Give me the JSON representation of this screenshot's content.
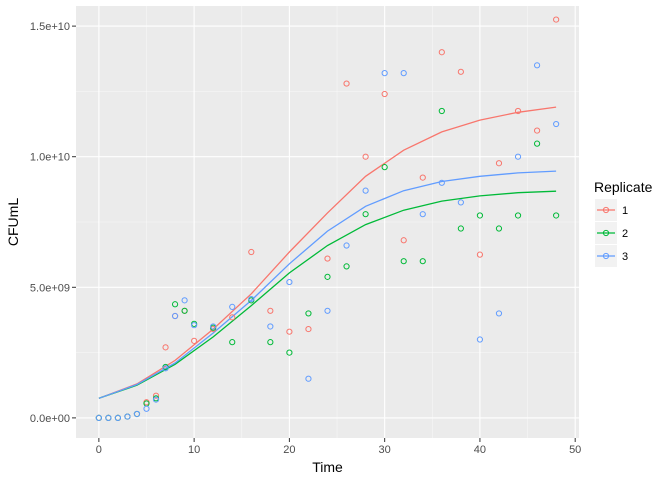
{
  "chart_data": {
    "type": "scatter",
    "xlabel": "Time",
    "ylabel": "CFUmL",
    "xlim": [
      -2.4,
      50.4
    ],
    "ylim": [
      -770000000.0,
      15770000000.0
    ],
    "x_ticks": [
      0,
      10,
      20,
      30,
      40,
      50
    ],
    "x_tick_labels": [
      "0",
      "10",
      "20",
      "30",
      "40",
      "50"
    ],
    "y_ticks": [
      0,
      5000000000,
      10000000000,
      15000000000
    ],
    "y_tick_labels": [
      "0.0e+00",
      "5.0e+09",
      "1.0e+10",
      "1.5e+10"
    ],
    "grid": true,
    "legend": {
      "title": "Replicate",
      "position": "right",
      "entries": [
        "1",
        "2",
        "3"
      ]
    },
    "series": [
      {
        "name": "1",
        "color": "#F8766D",
        "points": [
          [
            0,
            0
          ],
          [
            1,
            0
          ],
          [
            2,
            0
          ],
          [
            3,
            50000000.0
          ],
          [
            4,
            150000000.0
          ],
          [
            5,
            600000000.0
          ],
          [
            6,
            850000000.0
          ],
          [
            7,
            2700000000.0
          ],
          [
            8,
            3900000000.0
          ],
          [
            9,
            4100000000.0
          ],
          [
            10,
            2950000000.0
          ],
          [
            12,
            3400000000.0
          ],
          [
            14,
            3850000000.0
          ],
          [
            16,
            6350000000.0
          ],
          [
            18,
            4100000000.0
          ],
          [
            20,
            3300000000.0
          ],
          [
            22,
            3400000000.0
          ],
          [
            24,
            6100000000.0
          ],
          [
            26,
            12800000000.0
          ],
          [
            28,
            10000000000.0
          ],
          [
            30,
            12400000000.0
          ],
          [
            32,
            6800000000.0
          ],
          [
            34,
            9200000000.0
          ],
          [
            36,
            14000000000.0
          ],
          [
            38,
            13250000000.0
          ],
          [
            40,
            6250000000.0
          ],
          [
            42,
            9750000000.0
          ],
          [
            44,
            11750000000.0
          ],
          [
            46,
            11000000000.0
          ],
          [
            48,
            15250000000.0
          ]
        ],
        "fit": [
          [
            0,
            750000000.0
          ],
          [
            4,
            1300000000.0
          ],
          [
            8,
            2200000000.0
          ],
          [
            12,
            3400000000.0
          ],
          [
            16,
            4750000000.0
          ],
          [
            20,
            6350000000.0
          ],
          [
            24,
            7850000000.0
          ],
          [
            28,
            9250000000.0
          ],
          [
            32,
            10250000000.0
          ],
          [
            36,
            10950000000.0
          ],
          [
            40,
            11400000000.0
          ],
          [
            44,
            11700000000.0
          ],
          [
            48,
            11900000000.0
          ]
        ]
      },
      {
        "name": "2",
        "color": "#00BA38",
        "points": [
          [
            0,
            0
          ],
          [
            1,
            0
          ],
          [
            2,
            0
          ],
          [
            3,
            50000000.0
          ],
          [
            4,
            150000000.0
          ],
          [
            5,
            550000000.0
          ],
          [
            6,
            750000000.0
          ],
          [
            7,
            1950000000.0
          ],
          [
            8,
            4350000000.0
          ],
          [
            9,
            4100000000.0
          ],
          [
            10,
            3600000000.0
          ],
          [
            12,
            3450000000.0
          ],
          [
            14,
            2900000000.0
          ],
          [
            16,
            4500000000.0
          ],
          [
            18,
            2900000000.0
          ],
          [
            20,
            2500000000.0
          ],
          [
            22,
            4000000000.0
          ],
          [
            24,
            5400000000.0
          ],
          [
            26,
            5800000000.0
          ],
          [
            28,
            7800000000.0
          ],
          [
            30,
            9600000000.0
          ],
          [
            32,
            6000000000.0
          ],
          [
            34,
            6000000000.0
          ],
          [
            36,
            11750000000.0
          ],
          [
            38,
            7250000000.0
          ],
          [
            40,
            7750000000.0
          ],
          [
            42,
            7250000000.0
          ],
          [
            44,
            7750000000.0
          ],
          [
            46,
            10500000000.0
          ],
          [
            48,
            7750000000.0
          ]
        ],
        "fit": [
          [
            0,
            750000000.0
          ],
          [
            4,
            1250000000.0
          ],
          [
            8,
            2050000000.0
          ],
          [
            12,
            3100000000.0
          ],
          [
            16,
            4300000000.0
          ],
          [
            20,
            5550000000.0
          ],
          [
            24,
            6600000000.0
          ],
          [
            28,
            7400000000.0
          ],
          [
            32,
            7950000000.0
          ],
          [
            36,
            8300000000.0
          ],
          [
            40,
            8500000000.0
          ],
          [
            44,
            8620000000.0
          ],
          [
            48,
            8680000000.0
          ]
        ]
      },
      {
        "name": "3",
        "color": "#619CFF",
        "points": [
          [
            0,
            0
          ],
          [
            1,
            0
          ],
          [
            2,
            0
          ],
          [
            3,
            50000000.0
          ],
          [
            4,
            150000000.0
          ],
          [
            5,
            350000000.0
          ],
          [
            6,
            700000000.0
          ],
          [
            7,
            1900000000.0
          ],
          [
            8,
            3900000000.0
          ],
          [
            9,
            4500000000.0
          ],
          [
            10,
            3550000000.0
          ],
          [
            12,
            3500000000.0
          ],
          [
            14,
            4250000000.0
          ],
          [
            16,
            4550000000.0
          ],
          [
            18,
            3500000000.0
          ],
          [
            20,
            5200000000.0
          ],
          [
            22,
            1500000000.0
          ],
          [
            24,
            4100000000.0
          ],
          [
            26,
            6600000000.0
          ],
          [
            28,
            8700000000.0
          ],
          [
            30,
            13200000000.0
          ],
          [
            32,
            13200000000.0
          ],
          [
            34,
            7800000000.0
          ],
          [
            36,
            9000000000.0
          ],
          [
            38,
            8250000000.0
          ],
          [
            40,
            3000000000.0
          ],
          [
            42,
            4000000000.0
          ],
          [
            44,
            10000000000.0
          ],
          [
            46,
            13500000000.0
          ],
          [
            48,
            11250000000.0
          ]
        ],
        "fit": [
          [
            0,
            750000000.0
          ],
          [
            4,
            1280000000.0
          ],
          [
            8,
            2100000000.0
          ],
          [
            12,
            3250000000.0
          ],
          [
            16,
            4500000000.0
          ],
          [
            20,
            5900000000.0
          ],
          [
            24,
            7150000000.0
          ],
          [
            28,
            8100000000.0
          ],
          [
            32,
            8700000000.0
          ],
          [
            36,
            9050000000.0
          ],
          [
            40,
            9250000000.0
          ],
          [
            44,
            9380000000.0
          ],
          [
            48,
            9450000000.0
          ]
        ]
      }
    ]
  }
}
